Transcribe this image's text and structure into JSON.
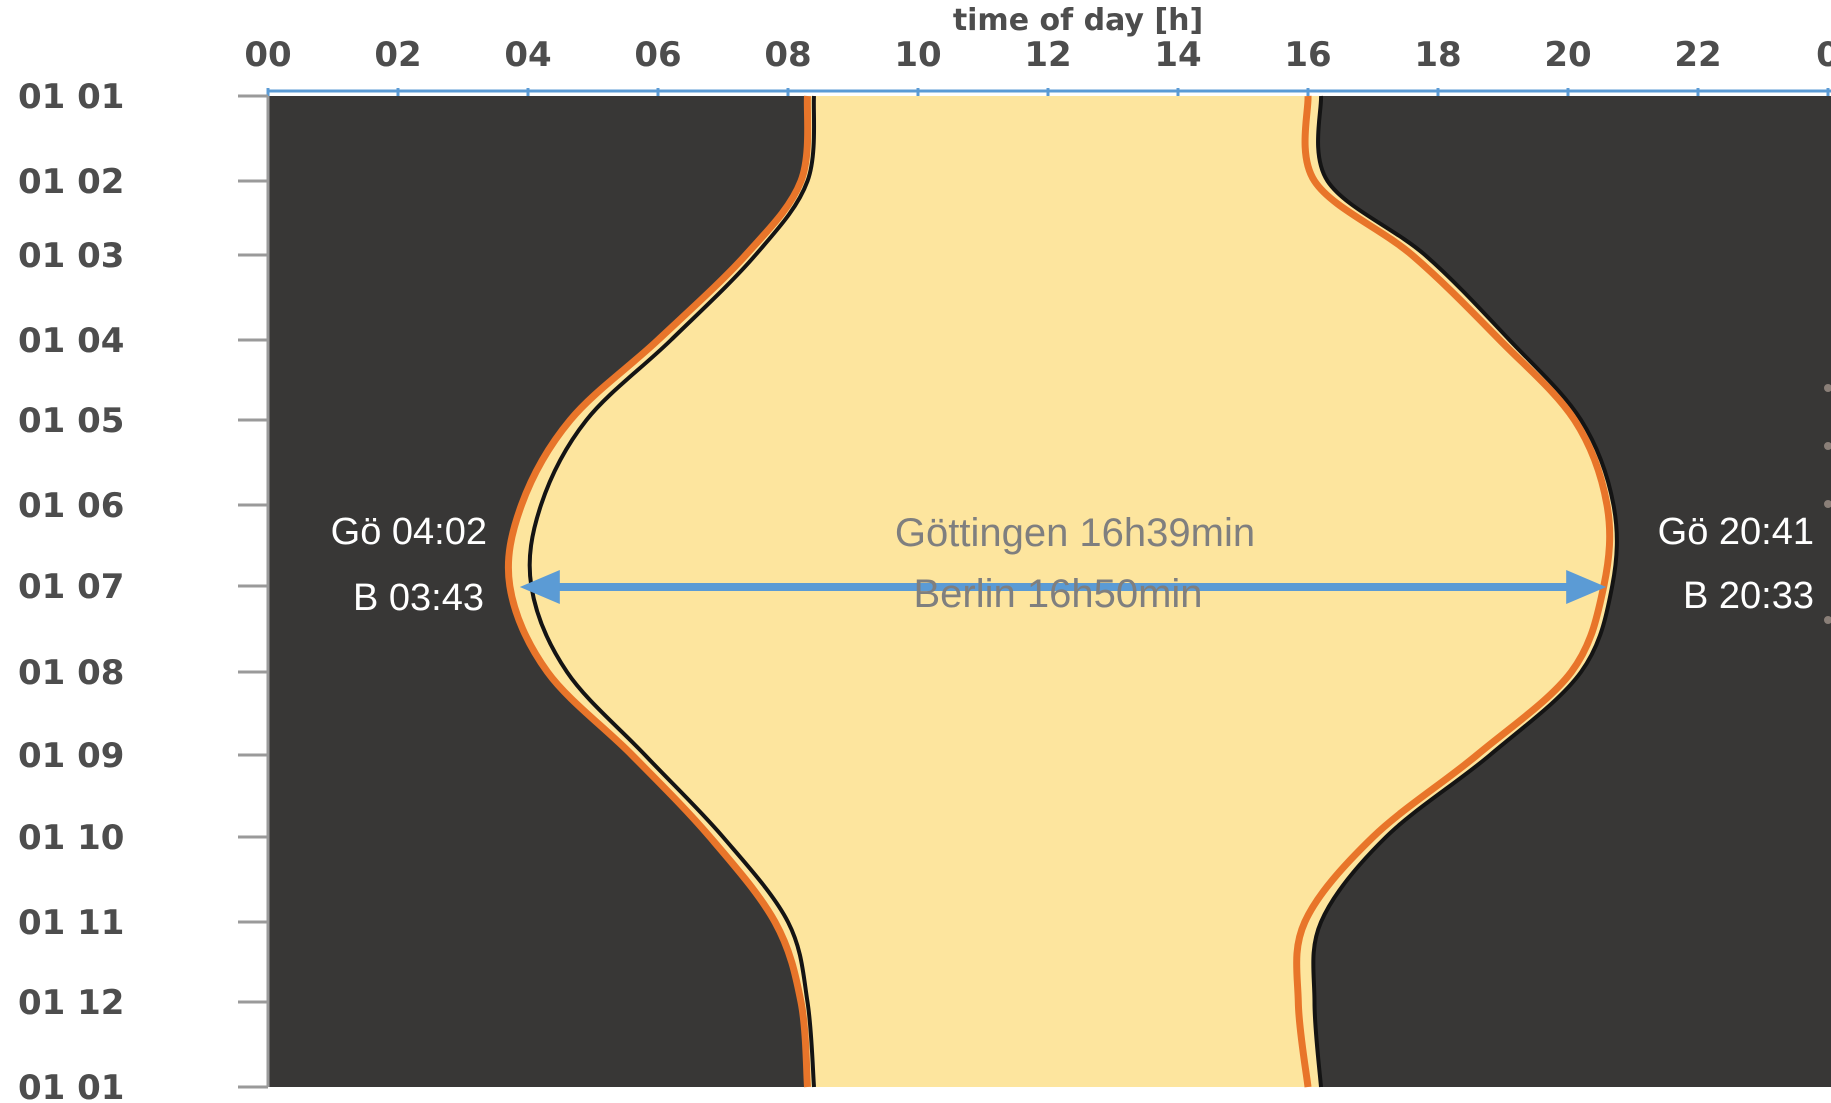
{
  "chart_data": {
    "type": "area",
    "xlabel": "time of day [h]",
    "x_ticks": [
      "00",
      "02",
      "04",
      "06",
      "08",
      "10",
      "12",
      "14",
      "16",
      "18",
      "20",
      "22",
      "0"
    ],
    "xlim": [
      0,
      24
    ],
    "y_ticks": [
      "01 01",
      "01 02",
      "01 03",
      "01 04",
      "01 05",
      "01 06",
      "01 07",
      "01 08",
      "01 09",
      "01 10",
      "01 11",
      "01 12",
      "01 01"
    ],
    "ylim": [
      0,
      12
    ],
    "y_inverted": true,
    "series": [
      {
        "name": "Göttingen",
        "sunrise": [
          8.4,
          8.3,
          7.5,
          6.2,
          4.9,
          4.2,
          4.05,
          4.6,
          5.8,
          7.0,
          8.0,
          8.3,
          8.4
        ],
        "sunset": [
          16.2,
          16.3,
          17.8,
          19.1,
          20.2,
          20.7,
          20.68,
          20.2,
          18.8,
          17.2,
          16.2,
          16.1,
          16.2
        ]
      },
      {
        "name": "Berlin",
        "sunrise": [
          8.3,
          8.2,
          7.35,
          6.0,
          4.65,
          3.9,
          3.72,
          4.3,
          5.6,
          6.8,
          7.8,
          8.2,
          8.3
        ],
        "sunset": [
          16.0,
          16.1,
          17.6,
          18.95,
          20.1,
          20.6,
          20.55,
          20.05,
          18.6,
          17.0,
          15.95,
          15.85,
          16.0
        ]
      }
    ],
    "annotations": {
      "left_top": "Gö 04:02",
      "left_bottom": "B 03:43",
      "right_top": "Gö 20:41",
      "right_bottom": "B 20:33",
      "center_top": "Göttingen 16h39min",
      "center_bottom": "Berlin 16h50min"
    },
    "colors": {
      "night": "#383736",
      "day": "#FDE59E",
      "berlin_line": "#E8752A",
      "gottingen_line": "#141414",
      "arrow": "#5B9BD5",
      "axis_text": "#4d4d4d",
      "axis_line": "#5B9BD5",
      "day_annotation": "#7f7f7f",
      "night_annotation": "#ffffff"
    }
  }
}
